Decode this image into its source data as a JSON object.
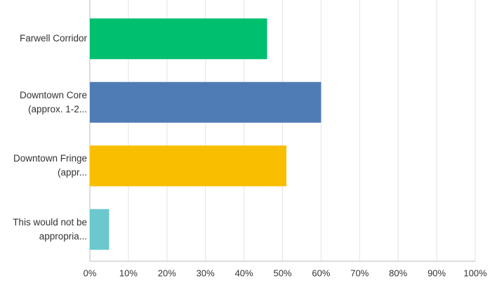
{
  "chart_data": {
    "type": "hbar",
    "categories": [
      "Farwell Corridor",
      "Downtown Core (approx. 1-2...",
      "Downtown Fringe (appr...",
      "This would not be appropria..."
    ],
    "values": [
      46,
      60,
      51,
      5
    ],
    "colors": [
      "#00bf6f",
      "#507cb6",
      "#f9be00",
      "#6bc8cd"
    ],
    "xlim": [
      0,
      100
    ],
    "xticks": [
      {
        "value": 0,
        "label": "0%"
      },
      {
        "value": 10,
        "label": "10%"
      },
      {
        "value": 20,
        "label": "20%"
      },
      {
        "value": 30,
        "label": "30%"
      },
      {
        "value": 40,
        "label": "40%"
      },
      {
        "value": 50,
        "label": "50%"
      },
      {
        "value": 60,
        "label": "60%"
      },
      {
        "value": 70,
        "label": "70%"
      },
      {
        "value": 80,
        "label": "80%"
      },
      {
        "value": 90,
        "label": "90%"
      },
      {
        "value": 100,
        "label": "100%"
      }
    ],
    "grid": true
  }
}
